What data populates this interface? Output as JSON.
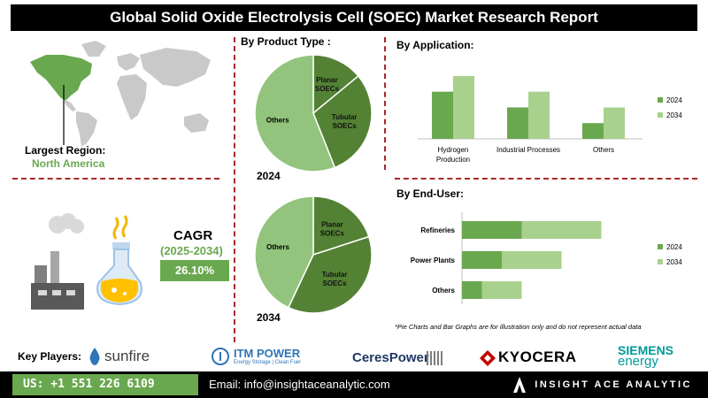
{
  "header": {
    "title": "Global Solid Oxide Electrolysis Cell (SOEC) Market Research Report"
  },
  "region": {
    "label": "Largest Region:",
    "value": "North America"
  },
  "cagr": {
    "label": "CAGR",
    "period": "(2025-2034)",
    "value": "26.10%"
  },
  "product_type": {
    "title": "By  Product Type :"
  },
  "application": {
    "title": "By Application:"
  },
  "end_user": {
    "title": "By End-User:"
  },
  "note": "*Pie Charts and Bar Graphs are for illustration only and do not represent actual data",
  "colors": {
    "dark_green": "#6aa84f",
    "light_green": "#a9d18e",
    "pie_dark": "#548235",
    "pie_light": "#93c47d",
    "divider": "#a8282a"
  },
  "chart_data": [
    {
      "type": "pie",
      "year_label": "2024",
      "slices": [
        {
          "label": "Planar SOECs",
          "value": 14
        },
        {
          "label": "Tubular SOECs",
          "value": 30
        },
        {
          "label": "Others",
          "value": 56
        }
      ]
    },
    {
      "type": "pie",
      "year_label": "2034",
      "slices": [
        {
          "label": "Planar SOECs",
          "value": 20
        },
        {
          "label": "Tubular SOECs",
          "value": 37
        },
        {
          "label": "Others",
          "value": 43
        }
      ]
    },
    {
      "type": "bar",
      "orientation": "vertical",
      "categories": [
        "Hydrogen Production",
        "Industrial Processes",
        "Others"
      ],
      "series": [
        {
          "name": "2024",
          "values": [
            3,
            2,
            1
          ]
        },
        {
          "name": "2034",
          "values": [
            4,
            3,
            2
          ]
        }
      ],
      "ylim": [
        0,
        4.5
      ],
      "legend_position": "right"
    },
    {
      "type": "bar",
      "orientation": "horizontal",
      "stacked": true,
      "categories": [
        "Refineries",
        "Power Plants",
        "Others"
      ],
      "series": [
        {
          "name": "2024",
          "values": [
            3,
            2,
            1
          ]
        },
        {
          "name": "2034",
          "values": [
            4,
            3,
            2
          ]
        }
      ],
      "xlim": [
        0,
        8
      ],
      "legend_position": "right"
    }
  ],
  "key_players": {
    "label": "Key Players:",
    "logos": [
      {
        "name": "sunfire",
        "text": "sunfire"
      },
      {
        "name": "itm-power",
        "text": "ITM POWER",
        "tagline": "Energy Storage | Clean Fuel"
      },
      {
        "name": "ceres-power",
        "text": "CeresPower"
      },
      {
        "name": "kyocera",
        "text": "KYOCERA"
      },
      {
        "name": "siemens-energy",
        "text": "SIEMENS",
        "text2": "energy"
      }
    ]
  },
  "footer": {
    "phone": "US: +1 551 226 6109",
    "email": "Email: info@insightaceanalytic.com",
    "brand": "INSIGHT ACE ANALYTIC"
  }
}
